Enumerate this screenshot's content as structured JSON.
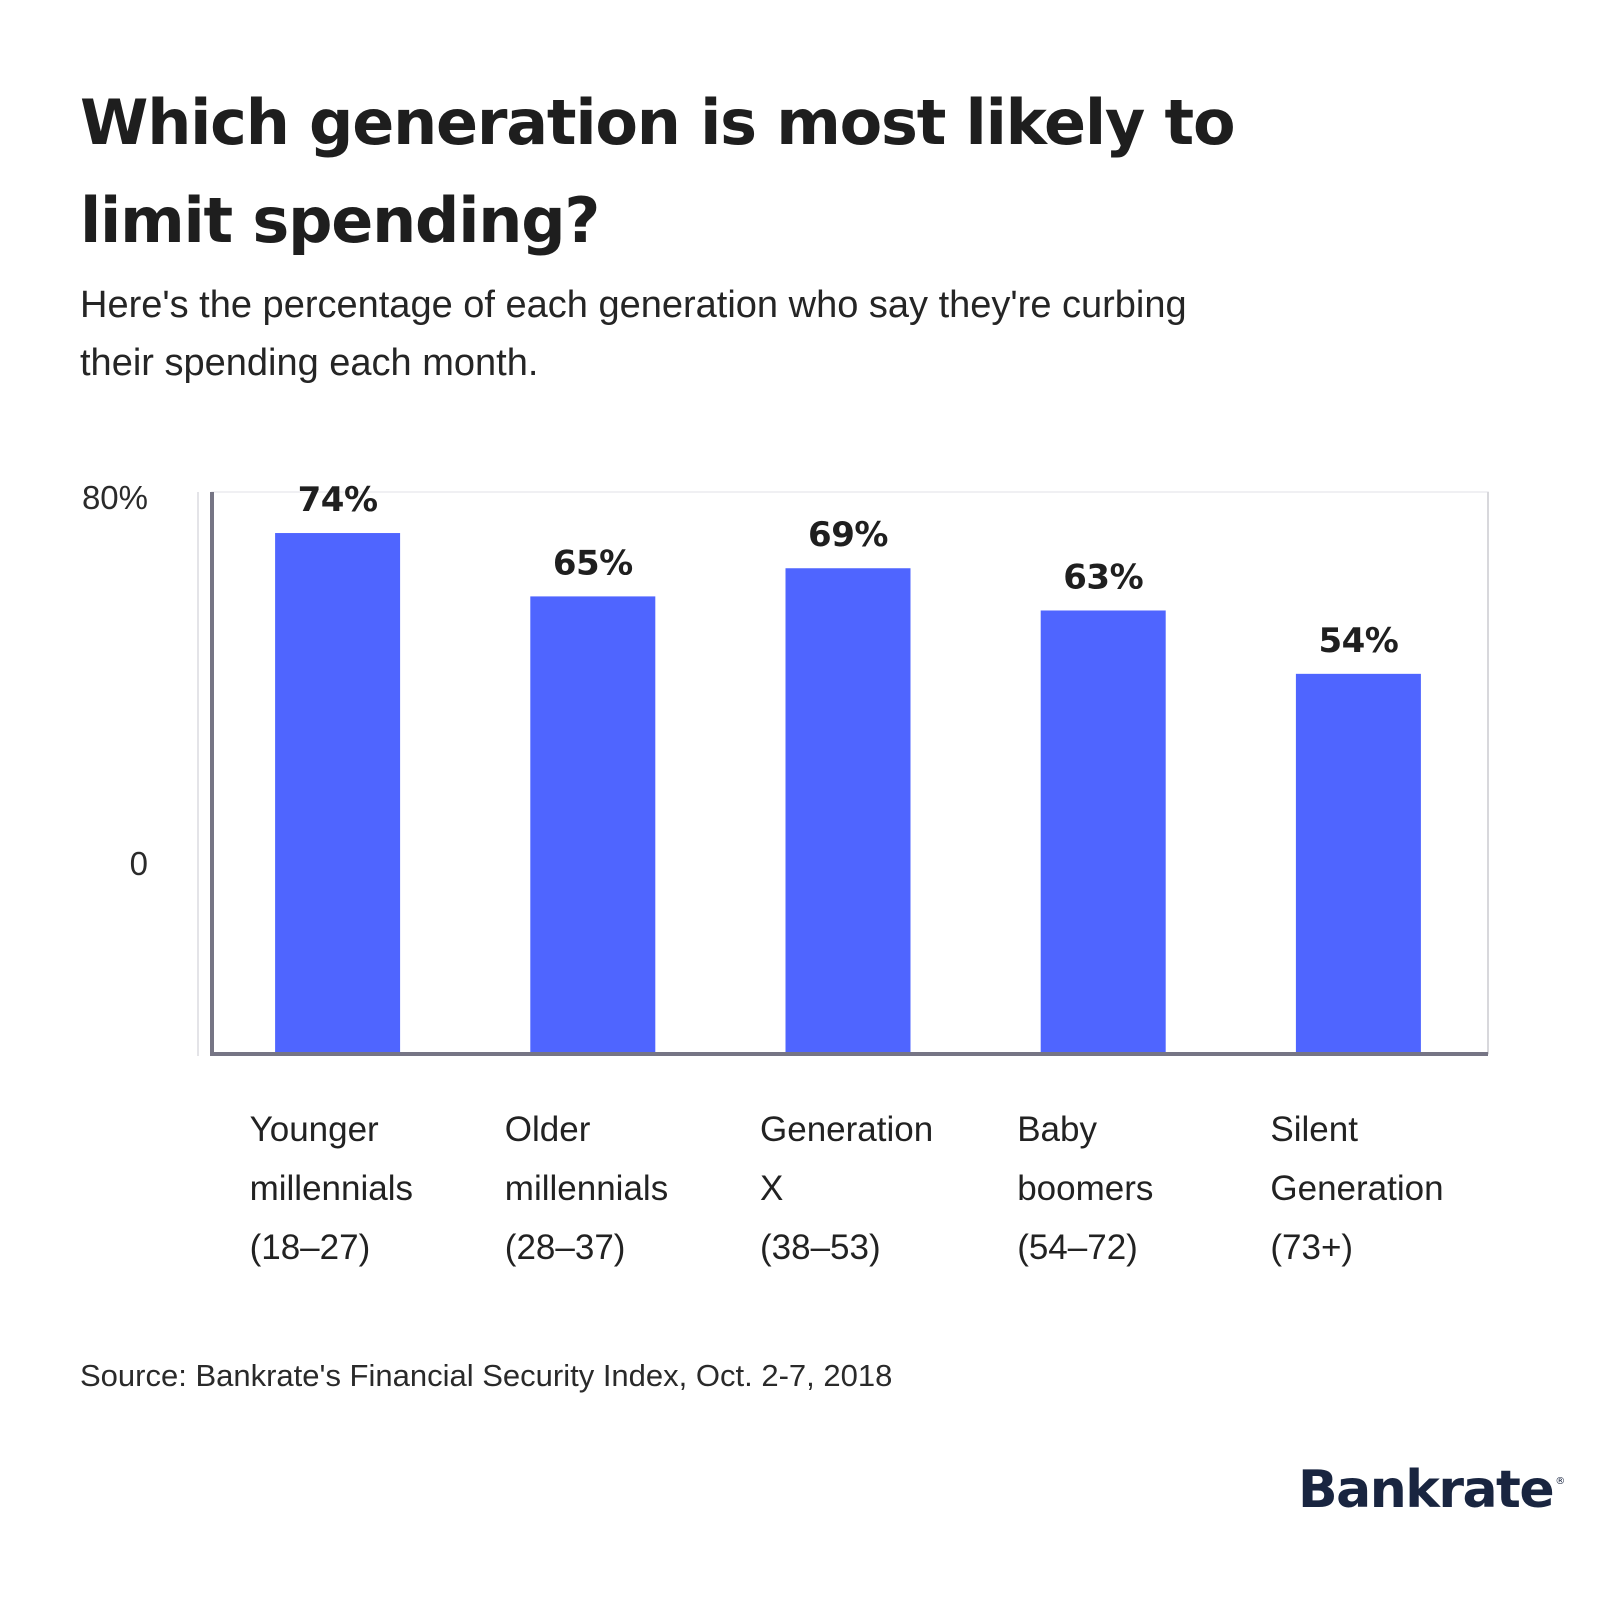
{
  "header": {
    "title": "Which generation is most likely to limit spending?",
    "subtitle": "Here's the percentage of each generation who say they're curbing\n their spending each month."
  },
  "footer": {
    "source": "Source: Bankrate's Financial Security Index, Oct. 2-7, 2018",
    "logo": "Bankrate",
    "logo_mark": "®"
  },
  "colors": {
    "bar": "#4F65FF",
    "axis": "#767585",
    "frame": "#D8D8DC",
    "text": "#1f1f1f",
    "logo": "#192540"
  },
  "chart_data": {
    "type": "bar",
    "title": "Which generation is most likely to limit spending?",
    "subtitle": "Here's the percentage of each generation who say they're curbing their spending each month.",
    "xlabel": "",
    "ylabel": "",
    "ylim": [
      0,
      80
    ],
    "yticks": [
      {
        "value": 80,
        "label": "80%"
      },
      {
        "value": 0,
        "label": "0"
      }
    ],
    "grid": false,
    "legend": "none",
    "categories": [
      [
        "Younger",
        "millennials",
        "(18–27)"
      ],
      [
        "Older",
        "millennials",
        "(28–37)"
      ],
      [
        "Generation",
        "X",
        "(38–53)"
      ],
      [
        "Baby",
        "boomers",
        "(54–72)"
      ],
      [
        "Silent",
        "Generation",
        "(73+)"
      ]
    ],
    "values": [
      74,
      65,
      69,
      63,
      54
    ],
    "value_labels": [
      "74%",
      "65%",
      "69%",
      "63%",
      "54%"
    ],
    "unit": "%"
  }
}
